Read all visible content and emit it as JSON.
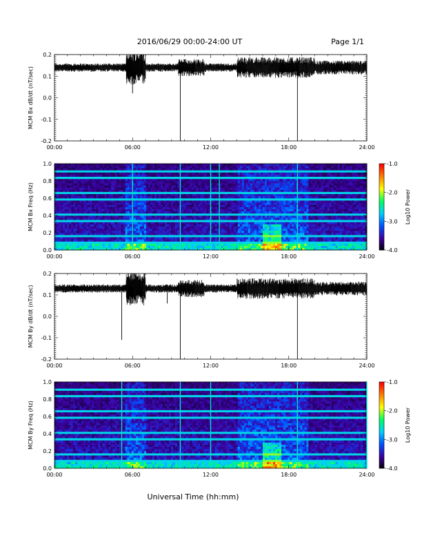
{
  "header": {
    "date_range": "2016/06/29  00:00-24:00 UT",
    "page": "Page 1/1"
  },
  "x_axis_label": "Universal Time (hh:mm)",
  "colorbar": {
    "label": "Log10 Power",
    "ticks": [
      -1.0,
      -2.0,
      -3.0,
      -4.0
    ],
    "range": [
      -4.0,
      -1.0
    ],
    "colormap": [
      "#000000",
      "#3c00a0",
      "#0050ff",
      "#00ccff",
      "#00ff60",
      "#ffff00",
      "#ff8000",
      "#ff0000"
    ]
  },
  "chart_data": [
    {
      "type": "line",
      "ylabel": "MCM Bx dB/dt (nT/sec)",
      "xlim": [
        "00:00",
        "24:00"
      ],
      "xticks": [
        "00:00",
        "06:00",
        "12:00",
        "18:00",
        "24:00"
      ],
      "ylim": [
        -0.2,
        0.2
      ],
      "yticks": [
        -0.2,
        -0.1,
        0.0,
        0.1,
        0.2
      ],
      "baseline": 0.14,
      "events": [
        {
          "time": "06:00",
          "y": 0.02
        },
        {
          "time": "09:40",
          "y": -0.2
        },
        {
          "time": "18:40",
          "y": -0.2
        }
      ]
    },
    {
      "type": "heatmap",
      "ylabel": "MCM Bx Freq (Hz)",
      "xlim": [
        "00:00",
        "24:00"
      ],
      "xticks": [
        "00:00",
        "06:00",
        "12:00",
        "18:00",
        "24:00"
      ],
      "ylim": [
        0.0,
        1.0
      ],
      "yticks": [
        0.0,
        0.2,
        0.4,
        0.6,
        0.8,
        1.0
      ],
      "events": [
        "06:00",
        "09:40",
        "12:00",
        "12:40",
        "18:40"
      ]
    },
    {
      "type": "line",
      "ylabel": "MCM By dB/dt (nT/sec)",
      "xlim": [
        "00:00",
        "24:00"
      ],
      "xticks": [
        "00:00",
        "06:00",
        "12:00",
        "18:00",
        "24:00"
      ],
      "ylim": [
        -0.2,
        0.2
      ],
      "yticks": [
        -0.2,
        -0.1,
        0.0,
        0.1,
        0.2
      ],
      "baseline": 0.13,
      "events": [
        {
          "time": "05:10",
          "y": -0.11
        },
        {
          "time": "06:00",
          "y": 0.06
        },
        {
          "time": "08:40",
          "y": 0.06
        },
        {
          "time": "09:40",
          "y": -0.2
        },
        {
          "time": "18:40",
          "y": -0.2
        }
      ]
    },
    {
      "type": "heatmap",
      "ylabel": "MCM By Freq (Hz)",
      "xlim": [
        "00:00",
        "24:00"
      ],
      "xticks": [
        "00:00",
        "06:00",
        "12:00",
        "18:00",
        "24:00"
      ],
      "ylim": [
        0.0,
        1.0
      ],
      "yticks": [
        0.0,
        0.2,
        0.4,
        0.6,
        0.8,
        1.0
      ],
      "events": [
        "05:10",
        "09:40",
        "12:00",
        "18:40",
        "24:00"
      ]
    }
  ]
}
